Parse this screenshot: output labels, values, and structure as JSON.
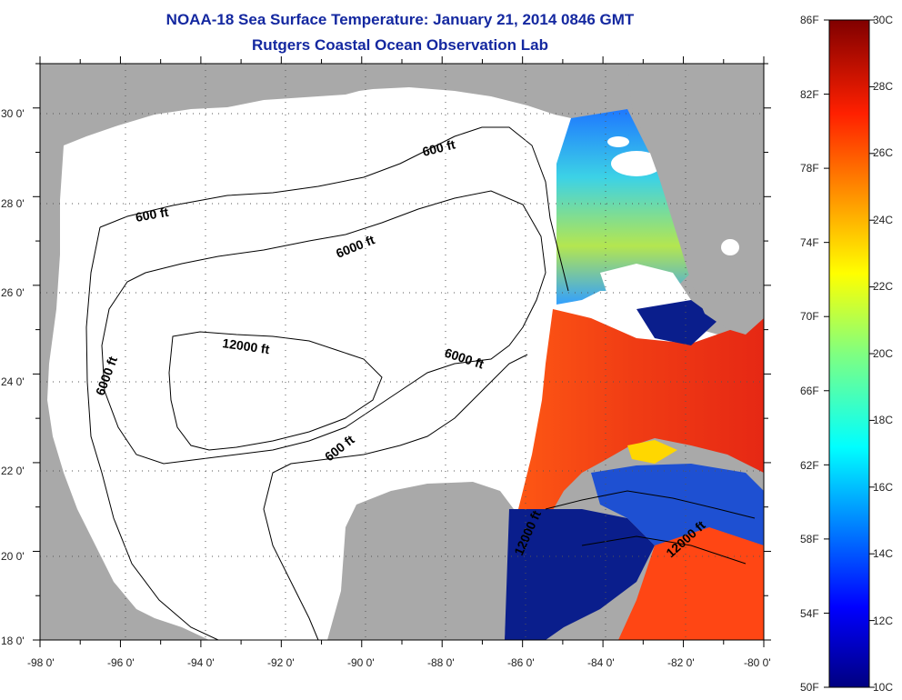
{
  "title": "NOAA-18 Sea Surface Temperature:  January 21, 2014 0846 GMT",
  "subtitle": "Rutgers Coastal Ocean Observation Lab",
  "x_ticks": [
    "-98 0'",
    "-96 0'",
    "-94 0'",
    "-92 0'",
    "-90 0'",
    "-88 0'",
    "-86 0'",
    "-84 0'",
    "-82 0'",
    "-80 0'"
  ],
  "y_ticks": [
    "30 0'",
    "28 0'",
    "26 0'",
    "24 0'",
    "22 0'",
    "20 0'",
    "18 0'"
  ],
  "contour_labels": {
    "l600_north": "600 ft",
    "l600_west": "600 ft",
    "l6000_north": "6000 ft",
    "l6000_west": "6000 ft",
    "l12000": "12000 ft",
    "l6000_east": "6000 ft",
    "l600_south": "600 ft",
    "l12000_sw": "12000 ft",
    "l12000_se": "12000 ft"
  },
  "colorbar": {
    "fahrenheit": [
      "86F",
      "82F",
      "78F",
      "74F",
      "70F",
      "66F",
      "62F",
      "58F",
      "54F",
      "50F"
    ],
    "celsius": [
      "30C",
      "28C",
      "26C",
      "24C",
      "22C",
      "20C",
      "18C",
      "16C",
      "14C",
      "12C",
      "10C"
    ]
  },
  "colors": {
    "title": "#1428a0",
    "land": "#a9a9a9",
    "water": "#ffffff",
    "warm": "#ff3c1e",
    "cold": "#0a1e8c"
  }
}
